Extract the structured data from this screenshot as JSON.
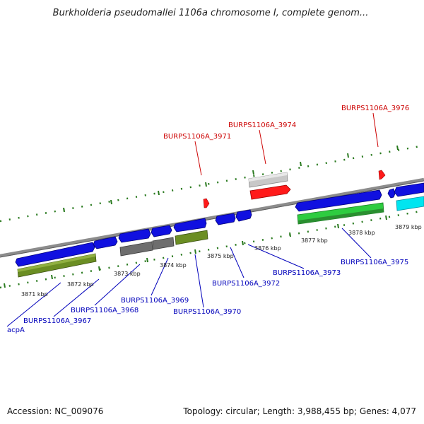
{
  "title": "Burkholderia pseudomallei 1106a chromosome I, complete genom...",
  "footer": {
    "accession": "Accession: NC_009076",
    "summary": "Topology: circular; Length: 3,988,455 bp; Genes: 4,077"
  },
  "scale": {
    "ticks": [
      "3871 kbp",
      "3872 kbp",
      "3873 kbp",
      "3874 kbp",
      "3875 kbp",
      "3876 kbp",
      "3877 kbp",
      "3878 kbp",
      "3879 kbp"
    ]
  },
  "colors": {
    "backbone": "#8c8c8c",
    "tick": "#2a7a1f",
    "forward_label": "#cc0000",
    "reverse_label": "#0000bb",
    "gene_blue": "#1010e0",
    "cds_olive": "#6b8e23",
    "cds_gray": "#6e6e6e",
    "gene_red": "#ff1a1a",
    "cds_lightgray": "#c8c8c8",
    "cds_green": "#2ecc40",
    "gene_cyan": "#00e5f0"
  },
  "genes": {
    "forward": [
      "BURPS1106A_3971",
      "BURPS1106A_3974",
      "BURPS1106A_3976"
    ],
    "reverse": [
      "acpA",
      "BURPS1106A_3967",
      "BURPS1106A_3968",
      "BURPS1106A_3969",
      "BURPS1106A_3970",
      "BURPS1106A_3972",
      "BURPS1106A_3973",
      "BURPS1106A_3975"
    ]
  }
}
